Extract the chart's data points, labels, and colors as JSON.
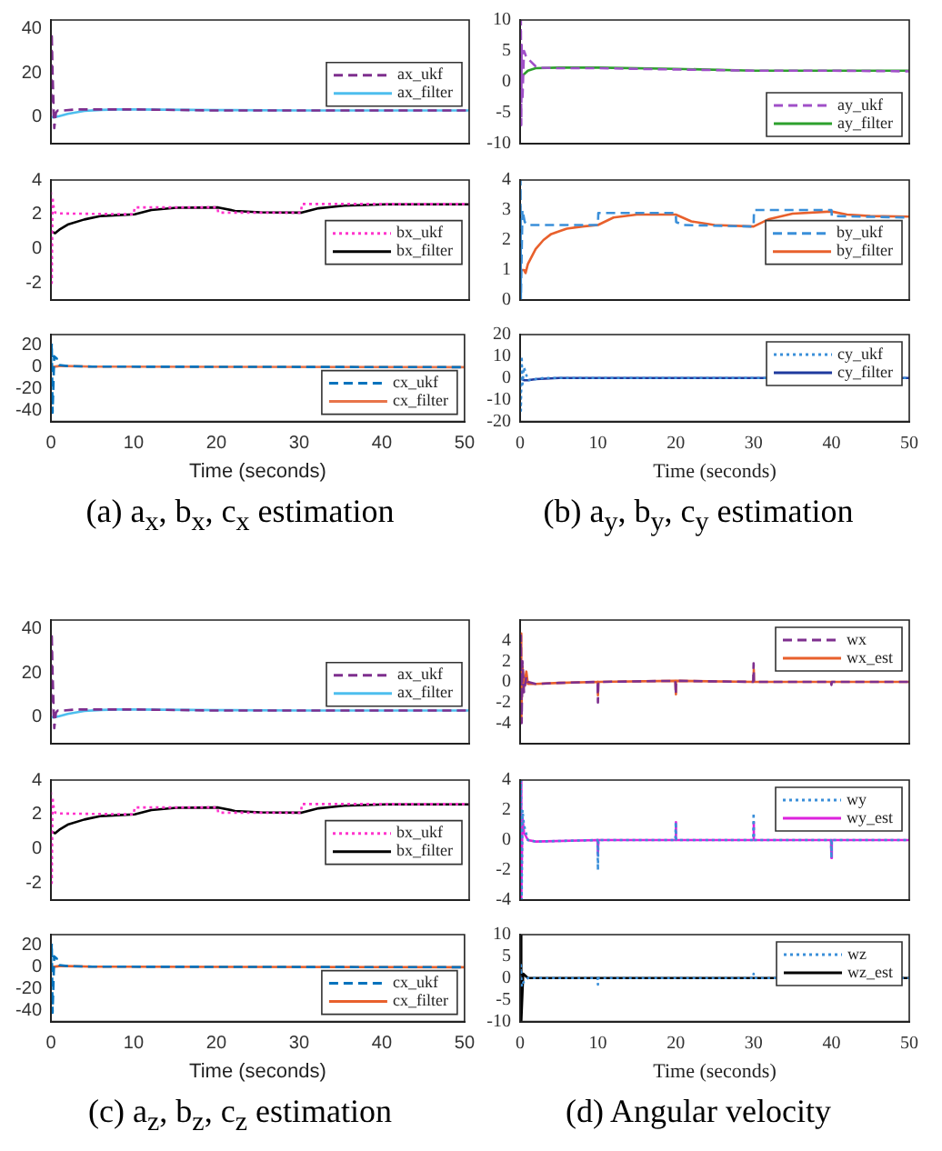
{
  "chart_data": [
    {
      "type": "line",
      "xlim": [
        0,
        50
      ],
      "xticks": [
        0,
        10,
        20,
        30,
        40,
        50
      ],
      "ylim": [
        -12,
        44
      ],
      "yticks": [
        0,
        20,
        40
      ],
      "tick_labels": "y",
      "legend": "right",
      "series": [
        {
          "name": "ax_ukf",
          "color": "#7e2f8e",
          "line_style": "dashed",
          "x": [
            0,
            0.1,
            0.2,
            0.4,
            0.6,
            0.8,
            1,
            1.5,
            3,
            5,
            10,
            20,
            30,
            40,
            50
          ],
          "values": [
            0,
            38,
            20,
            -5,
            2,
            3,
            3,
            3,
            3.5,
            3.5,
            3.5,
            3,
            3,
            3,
            3
          ]
        },
        {
          "name": "ax_filter",
          "color": "#4dbeee",
          "line_style": "solid",
          "x": [
            0,
            0.5,
            1,
            2,
            4,
            6,
            8,
            10,
            20,
            30,
            40,
            50
          ],
          "values": [
            0,
            0,
            0.5,
            1.5,
            2.8,
            3.3,
            3.5,
            3.5,
            3.2,
            3,
            3,
            3
          ]
        }
      ]
    },
    {
      "type": "line",
      "xlim": [
        0,
        50
      ],
      "xticks": [
        0,
        10,
        20,
        30,
        40,
        50
      ],
      "ylim": [
        -3,
        4
      ],
      "yticks": [
        -2,
        0,
        2,
        4
      ],
      "tick_labels": "y",
      "legend": "right",
      "series": [
        {
          "name": "bx_ukf",
          "color": "#ff33cc",
          "line_style": "dotted",
          "x": [
            0,
            0.1,
            0.2,
            0.3,
            0.5,
            1,
            9.9,
            10,
            19.9,
            20,
            29.9,
            30,
            40,
            50
          ],
          "values": [
            3.3,
            -2,
            3,
            2.5,
            2.1,
            2.05,
            2,
            2.4,
            2.4,
            2.1,
            2.1,
            2.6,
            2.6,
            2.6
          ]
        },
        {
          "name": "bx_filter",
          "color": "#000000",
          "line_style": "solid",
          "x": [
            0,
            0.5,
            1,
            2,
            4,
            6,
            8,
            10,
            12,
            15,
            20,
            22,
            25,
            30,
            32,
            35,
            40,
            50
          ],
          "values": [
            1,
            0.9,
            1.1,
            1.4,
            1.7,
            1.9,
            1.95,
            2,
            2.25,
            2.38,
            2.4,
            2.2,
            2.12,
            2.1,
            2.35,
            2.5,
            2.58,
            2.58
          ]
        }
      ]
    },
    {
      "type": "line",
      "xlabel": "Time (seconds)",
      "annotations": [
        "(a) a$_{x}$, b$_{x}$, c$_{x}$ estimation"
      ],
      "xlim": [
        0,
        50
      ],
      "xticks": [
        0,
        10,
        20,
        30,
        40,
        50
      ],
      "ylim": [
        -50,
        30
      ],
      "yticks": [
        -40,
        -20,
        0,
        20
      ],
      "legend": "bottom right",
      "series": [
        {
          "name": "cx_ukf",
          "color": "#0072bd",
          "line_style": "dashed",
          "x": [
            0,
            0.1,
            0.2,
            0.4,
            0.7,
            1,
            2,
            5,
            50
          ],
          "values": [
            0,
            22,
            -42,
            10,
            8,
            2,
            1,
            0.5,
            0
          ]
        },
        {
          "name": "cx_filter",
          "color": "#e8744a",
          "line_style": "solid",
          "x": [
            0,
            1,
            2,
            5,
            50
          ],
          "values": [
            0,
            1,
            1,
            0.5,
            0
          ]
        }
      ]
    },
    {
      "type": "line",
      "xlim": [
        0,
        50
      ],
      "xticks": [
        0,
        10,
        20,
        30,
        40,
        50
      ],
      "ylim": [
        -10,
        10
      ],
      "yticks": [
        -10,
        -5,
        0,
        5,
        10
      ],
      "tick_labels": "y",
      "legend": "bottom right",
      "series": [
        {
          "name": "ay_ukf",
          "color": "#a050c8",
          "line_style": "dashed",
          "x": [
            0,
            0.1,
            0.15,
            0.2,
            0.3,
            0.5,
            0.8,
            1.2,
            2,
            2.5,
            5,
            10,
            20,
            30,
            40,
            50
          ],
          "values": [
            0,
            10,
            -7,
            6,
            -3,
            5,
            4,
            3.5,
            2.5,
            2.3,
            2.2,
            2.2,
            2,
            1.8,
            1.8,
            1.7
          ]
        },
        {
          "name": "ay_filter",
          "color": "#2ca02c",
          "line_style": "solid",
          "x": [
            0,
            0.3,
            1,
            2,
            5,
            10,
            20,
            30,
            40,
            50
          ],
          "values": [
            1,
            1,
            1.8,
            2.2,
            2.3,
            2.3,
            2.1,
            1.8,
            1.8,
            1.8
          ]
        }
      ]
    },
    {
      "type": "line",
      "xlim": [
        0,
        50
      ],
      "xticks": [
        0,
        10,
        20,
        30,
        40,
        50
      ],
      "ylim": [
        0,
        4
      ],
      "yticks": [
        0,
        1,
        2,
        3,
        4
      ],
      "tick_labels": "y",
      "legend": "right",
      "series": [
        {
          "name": "by_ukf",
          "color": "#3a8fd9",
          "line_style": "dashed",
          "x": [
            0,
            0.05,
            0.1,
            0.3,
            0.6,
            1,
            10,
            10.05,
            20,
            20.05,
            21,
            30,
            30.05,
            40,
            40.05,
            50
          ],
          "values": [
            0,
            4,
            0,
            3,
            2.6,
            2.5,
            2.5,
            2.9,
            2.9,
            2.6,
            2.5,
            2.45,
            3,
            3,
            2.8,
            2.75
          ]
        },
        {
          "name": "by_filter",
          "color": "#e8602c",
          "line_style": "solid",
          "x": [
            0,
            0.5,
            0.7,
            1,
            2,
            3,
            4,
            6,
            8,
            10,
            12,
            15,
            20,
            22,
            25,
            30,
            32,
            35,
            40,
            42,
            45,
            50
          ],
          "values": [
            1,
            1,
            0.9,
            1.2,
            1.7,
            2,
            2.2,
            2.38,
            2.45,
            2.5,
            2.75,
            2.85,
            2.85,
            2.62,
            2.5,
            2.45,
            2.7,
            2.88,
            2.95,
            2.85,
            2.8,
            2.78
          ]
        }
      ]
    },
    {
      "type": "line",
      "xlabel": "Time (seconds)",
      "annotations": [
        "(b) a$_{y}$, b$_{y}$, c$_{y}$ estimation"
      ],
      "xlim": [
        0,
        50
      ],
      "xticks": [
        0,
        10,
        20,
        30,
        40,
        50
      ],
      "ylim": [
        -20,
        20
      ],
      "yticks": [
        -20,
        -10,
        0,
        10,
        20
      ],
      "legend": "top right",
      "series": [
        {
          "name": "cy_ukf",
          "color": "#3a8fd9",
          "line_style": "dotted",
          "x": [
            0,
            0.1,
            0.2,
            0.3,
            0.5,
            1,
            3,
            5,
            50
          ],
          "values": [
            0,
            -15,
            10,
            -3,
            5,
            -1,
            0,
            0,
            0
          ]
        },
        {
          "name": "cy_filter",
          "color": "#1f3a9e",
          "line_style": "solid",
          "x": [
            0,
            0.5,
            1,
            2,
            5,
            50
          ],
          "values": [
            0,
            -1,
            -1,
            -0.5,
            0,
            0
          ]
        }
      ]
    },
    {
      "type": "line",
      "xlim": [
        0,
        50
      ],
      "xticks": [
        0,
        10,
        20,
        30,
        40,
        50
      ],
      "ylim": [
        -12,
        44
      ],
      "yticks": [
        0,
        20,
        40
      ],
      "tick_labels": "y",
      "legend": "right",
      "series": [
        {
          "name": "ax_ukf",
          "color": "#7e2f8e",
          "line_style": "dashed",
          "x": [
            0,
            0.1,
            0.2,
            0.4,
            0.6,
            0.8,
            1,
            1.5,
            3,
            5,
            10,
            20,
            30,
            40,
            50
          ],
          "values": [
            0,
            38,
            20,
            -5,
            2,
            3,
            3,
            3,
            3.5,
            3.5,
            3.5,
            3,
            3,
            3,
            3
          ]
        },
        {
          "name": "ax_filter",
          "color": "#4dbeee",
          "line_style": "solid",
          "x": [
            0,
            0.5,
            1,
            2,
            4,
            6,
            8,
            10,
            20,
            30,
            40,
            50
          ],
          "values": [
            0,
            0,
            0.5,
            1.5,
            2.8,
            3.3,
            3.5,
            3.5,
            3.2,
            3,
            3,
            3
          ]
        }
      ]
    },
    {
      "type": "line",
      "xlim": [
        0,
        50
      ],
      "xticks": [
        0,
        10,
        20,
        30,
        40,
        50
      ],
      "ylim": [
        -3,
        4
      ],
      "yticks": [
        -2,
        0,
        2,
        4
      ],
      "tick_labels": "y",
      "legend": "right",
      "series": [
        {
          "name": "bx_ukf",
          "color": "#ff33cc",
          "line_style": "dotted",
          "x": [
            0,
            0.1,
            0.2,
            0.3,
            0.5,
            1,
            9.9,
            10,
            19.9,
            20,
            29.9,
            30,
            40,
            50
          ],
          "values": [
            3.3,
            -2,
            3,
            2.5,
            2.1,
            2.05,
            2,
            2.4,
            2.4,
            2.1,
            2.1,
            2.6,
            2.6,
            2.6
          ]
        },
        {
          "name": "bx_filter",
          "color": "#000000",
          "line_style": "solid",
          "x": [
            0,
            0.5,
            1,
            2,
            4,
            6,
            8,
            10,
            12,
            15,
            20,
            22,
            25,
            30,
            32,
            35,
            40,
            50
          ],
          "values": [
            1,
            0.9,
            1.1,
            1.4,
            1.7,
            1.9,
            1.95,
            2,
            2.25,
            2.38,
            2.4,
            2.2,
            2.12,
            2.1,
            2.35,
            2.5,
            2.58,
            2.58
          ]
        }
      ]
    },
    {
      "type": "line",
      "xlabel": "Time (seconds)",
      "annotations": [
        "(c) a$_{z}$, b$_{z}$, c$_{z}$ estimation"
      ],
      "xlim": [
        0,
        50
      ],
      "xticks": [
        0,
        10,
        20,
        30,
        40,
        50
      ],
      "ylim": [
        -50,
        30
      ],
      "yticks": [
        -40,
        -20,
        0,
        20
      ],
      "legend": "bottom right",
      "series": [
        {
          "name": "cx_ukf",
          "color": "#0072bd",
          "line_style": "dashed",
          "x": [
            0,
            0.1,
            0.2,
            0.4,
            0.7,
            1,
            2,
            5,
            50
          ],
          "values": [
            0,
            22,
            -42,
            10,
            8,
            2,
            1,
            0.5,
            0
          ]
        },
        {
          "name": "cx_filter",
          "color": "#e8602c",
          "line_style": "solid",
          "x": [
            0,
            1,
            2,
            5,
            50
          ],
          "values": [
            0,
            1,
            1,
            0.5,
            0
          ]
        }
      ]
    },
    {
      "type": "line",
      "xlim": [
        0,
        50
      ],
      "xticks": [
        0,
        10,
        20,
        30,
        40,
        50
      ],
      "ylim": [
        -6,
        6
      ],
      "yticks": [
        -4,
        -2,
        0,
        2,
        4
      ],
      "tick_labels": "y",
      "legend": "top right",
      "series": [
        {
          "name": "wx",
          "color": "#7e2f8e",
          "line_style": "dashed",
          "x": [
            0,
            0.1,
            0.2,
            0.3,
            0.5,
            0.8,
            1,
            2,
            5,
            9.95,
            10,
            10.05,
            19.95,
            20,
            20.05,
            29.95,
            30,
            30.05,
            39.95,
            40,
            40.05,
            50
          ],
          "values": [
            0,
            4.5,
            -4,
            2,
            -1,
            0.5,
            0,
            -0.2,
            -0.1,
            0,
            -2,
            0,
            0.1,
            -1.2,
            0.1,
            0,
            1.8,
            0,
            0,
            -0.3,
            0,
            0
          ]
        },
        {
          "name": "wx_est",
          "color": "#e8602c",
          "line_style": "solid",
          "x": [
            0,
            0.1,
            0.2,
            0.3,
            0.5,
            0.8,
            1,
            2,
            5,
            9.95,
            10,
            10.05,
            19.95,
            20,
            20.05,
            29.95,
            30,
            30.05,
            50
          ],
          "values": [
            0,
            4.7,
            -3.8,
            1.5,
            -0.5,
            1,
            -0.2,
            -0.2,
            -0.1,
            0,
            -1.3,
            0,
            0.1,
            -1.2,
            0.1,
            0,
            1.2,
            0,
            0
          ]
        }
      ]
    },
    {
      "type": "line",
      "xlim": [
        0,
        50
      ],
      "xticks": [
        0,
        10,
        20,
        30,
        40,
        50
      ],
      "ylim": [
        -4,
        4
      ],
      "yticks": [
        -4,
        -2,
        0,
        2,
        4
      ],
      "tick_labels": "y",
      "legend": "top right",
      "series": [
        {
          "name": "wy",
          "color": "#3a8fd9",
          "line_style": "dotted",
          "x": [
            0,
            0.1,
            0.2,
            0.3,
            0.5,
            1,
            2,
            9.95,
            10,
            10.05,
            19.95,
            20,
            20.05,
            29.95,
            30,
            30.05,
            39.95,
            40,
            40.05,
            50
          ],
          "values": [
            0,
            4,
            -4,
            2,
            1,
            0,
            -0.1,
            0,
            -2,
            0,
            0,
            1.2,
            0,
            0,
            1.8,
            0,
            0,
            -1.2,
            0,
            0
          ]
        },
        {
          "name": "wy_est",
          "color": "#dd22dd",
          "line_style": "solid",
          "x": [
            0,
            0.1,
            0.2,
            0.3,
            0.5,
            1,
            2,
            9.95,
            10,
            10.05,
            19.95,
            20,
            20.05,
            29.95,
            30,
            30.05,
            39.95,
            40,
            40.05,
            50
          ],
          "values": [
            0,
            4,
            -4,
            1.5,
            0.5,
            0,
            -0.1,
            0,
            -1,
            0,
            0,
            1.2,
            0,
            0,
            1.2,
            0,
            0,
            -1.2,
            0,
            0
          ]
        }
      ]
    },
    {
      "type": "line",
      "xlabel": "Time (seconds)",
      "annotations": [
        "(d) Angular velocity"
      ],
      "xlim": [
        0,
        50
      ],
      "xticks": [
        0,
        10,
        20,
        30,
        40,
        50
      ],
      "ylim": [
        -10,
        10
      ],
      "yticks": [
        -10,
        -5,
        0,
        5,
        10
      ],
      "legend": "top right",
      "series": [
        {
          "name": "wz",
          "color": "#3a8fd9",
          "line_style": "dotted",
          "x": [
            0,
            0.1,
            0.2,
            0.4,
            1,
            9.95,
            10,
            10.05,
            29.95,
            30,
            30.05,
            50
          ],
          "values": [
            0,
            3,
            -2,
            -1,
            0,
            0,
            -1.5,
            0,
            0,
            1,
            0,
            0
          ]
        },
        {
          "name": "wz_est",
          "color": "#000000",
          "line_style": "solid",
          "x": [
            0,
            0.1,
            0.2,
            0.4,
            1,
            50
          ],
          "values": [
            0,
            10,
            -10,
            1,
            0,
            0
          ]
        }
      ]
    }
  ]
}
